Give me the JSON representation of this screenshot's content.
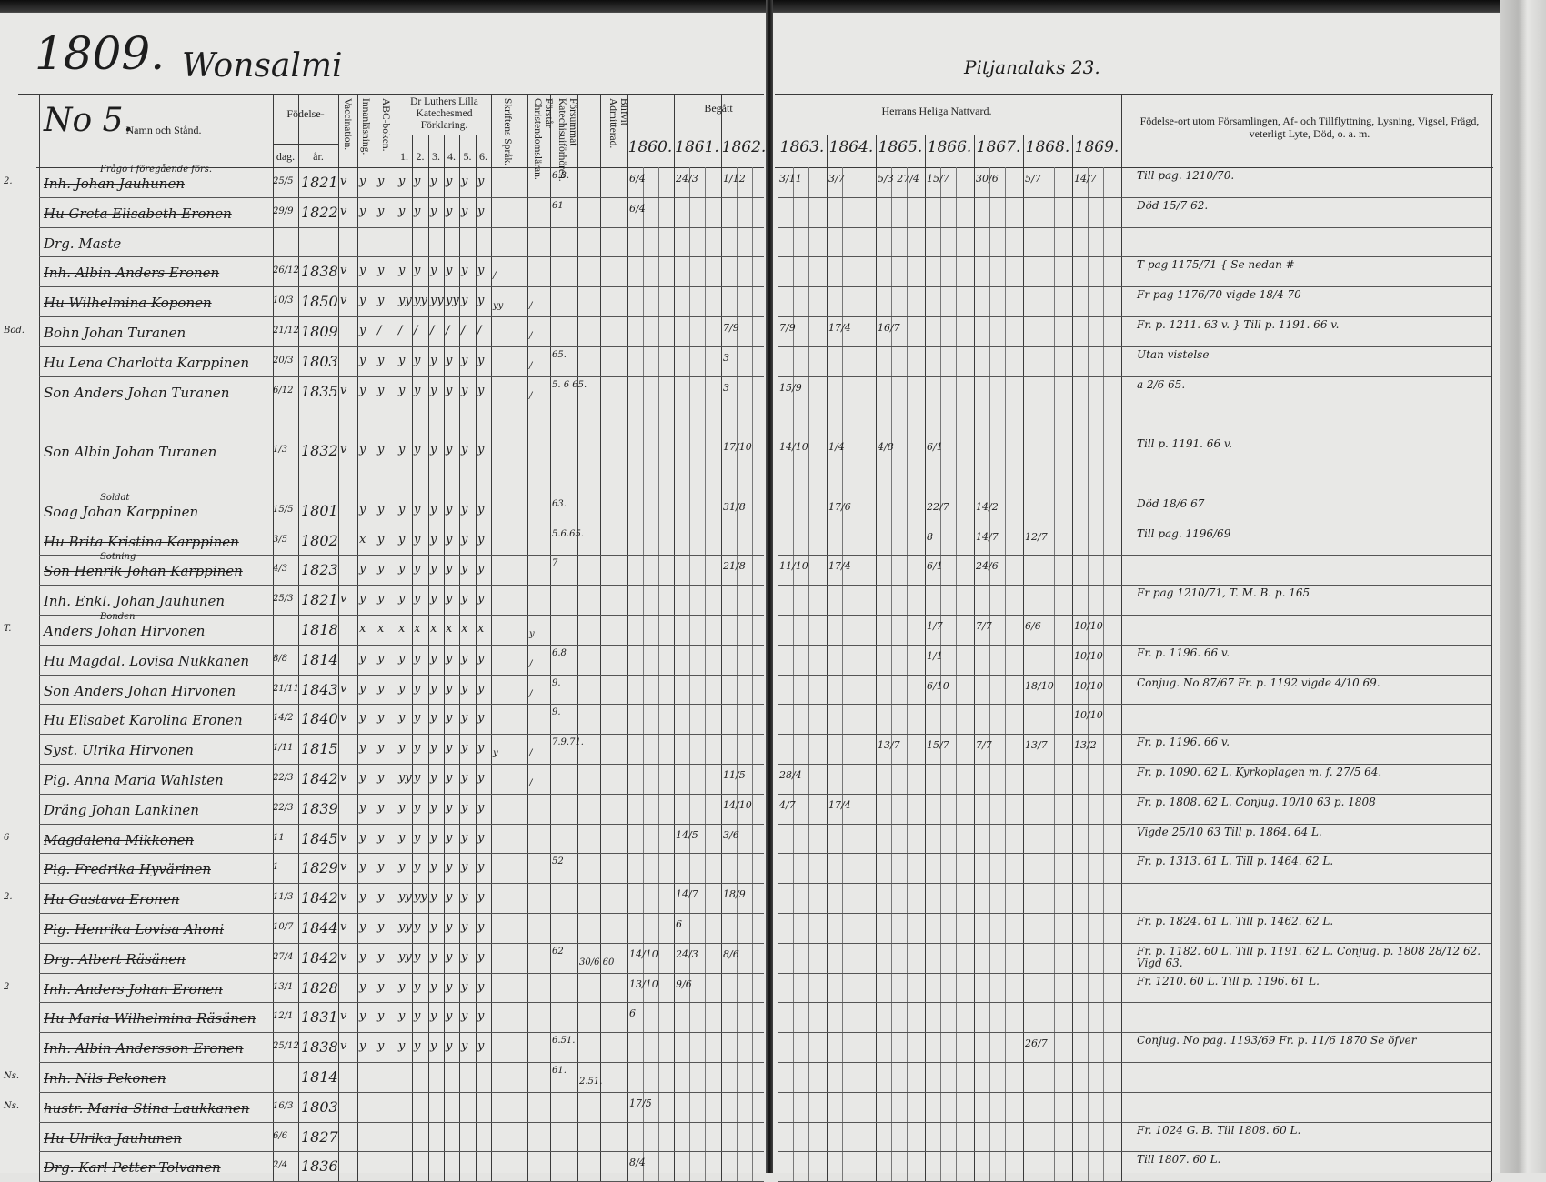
{
  "left_page": {
    "page_number": "1809.",
    "village": "Wonsalmi",
    "headers": {
      "number": "No 5.",
      "name": "Namn och Stånd.",
      "birth": "Födelse-",
      "day": "dag.",
      "year": "år.",
      "vaccination": "Vaccination.",
      "reading": "Innanläsning.",
      "abc": "ABC-boken.",
      "catechism": "Dr Luthers Lilla Katechesmed Förklaring.",
      "catechism_parts": [
        "1.",
        "2.",
        "3.",
        "4.",
        "5.",
        "6."
      ],
      "scripture": "Skriftens Språk.",
      "understands": "Förstår Christendomsläran.",
      "missed": "Försummat Katechisuiförhören.",
      "admitted": "Blifvit Admitterad.",
      "communion_left": "Begått",
      "years": [
        "1860.",
        "1861.",
        "1862."
      ]
    }
  },
  "right_page": {
    "place": "Pitjanalaks 23.",
    "headers": {
      "communion": "Herrans Heliga Nattvard.",
      "years": [
        "1863.",
        "1864.",
        "1865.",
        "1866.",
        "1867.",
        "1868.",
        "1869."
      ],
      "remarks": "Födelse-ort utom Församlingen, Af- och Tillflyttning, Lysning, Vigsel, Frägd, veterligt Lyte, Död, o. a. m."
    }
  },
  "rows": [
    {
      "margin": "2.",
      "note": "Frågo i föregående förs.",
      "name": "Inh. Johan Jauhunen",
      "struck": true,
      "day": "25/5",
      "year": "1821",
      "marks": [
        "v",
        "y",
        "y",
        "y",
        "y",
        "y",
        "y",
        "y",
        "y"
      ],
      "other": [
        "",
        "",
        "6.8.",
        ""
      ],
      "communion": {
        "1860": "6/4",
        "1861": "24/3",
        "1862": "1/12",
        "1863": "3/11",
        "1864": "3/7",
        "1865": "5/3 27/4",
        "1866": "15/7",
        "1867": "30/6",
        "1868": "5/7",
        "1869": "14/7"
      },
      "remark": "Till pag. 1210/70."
    },
    {
      "margin": "",
      "note": "",
      "name": "Hu Greta Elisabeth Eronen",
      "struck": true,
      "day": "29/9",
      "year": "1822",
      "marks": [
        "v",
        "y",
        "y",
        "y",
        "y",
        "y",
        "y",
        "y",
        "y"
      ],
      "other": [
        "",
        "",
        "61",
        ""
      ],
      "communion": {
        "1860": "6/4"
      },
      "remark": "Död 15/7 62."
    },
    {
      "margin": "",
      "note": "",
      "name": "Drg. Maste",
      "struck": false,
      "day": "",
      "year": "",
      "marks": [
        "",
        "",
        "",
        "",
        "",
        "",
        "",
        "",
        ""
      ],
      "other": [
        "",
        "",
        "",
        ""
      ],
      "communion": {},
      "remark": ""
    },
    {
      "margin": "",
      "note": "",
      "name": "Inh. Albin Anders Eronen",
      "struck": true,
      "day": "26/12",
      "year": "1838",
      "marks": [
        "v",
        "y",
        "y",
        "y",
        "y",
        "y",
        "y",
        "y",
        "y"
      ],
      "other": [
        "/",
        "",
        "",
        ""
      ],
      "communion": {},
      "remark": "T pag 1175/71 { Se nedan #"
    },
    {
      "margin": "",
      "note": "",
      "name": "Hu Wilhelmina Koponen",
      "struck": true,
      "day": "10/3",
      "year": "1850",
      "marks": [
        "v",
        "y",
        "y",
        "yy",
        "yy",
        "yy",
        "yy",
        "y",
        "y"
      ],
      "other": [
        "yy",
        "/",
        "",
        ""
      ],
      "communion": {},
      "remark": "Fr pag 1176/70   vigde 18/4 70"
    },
    {
      "margin": "Bod.",
      "note": "",
      "name": "Bohn Johan Turanen",
      "struck": false,
      "day": "21/12",
      "year": "1809",
      "marks": [
        "",
        "y",
        "/",
        "/",
        "/",
        "/",
        "/",
        "/",
        "/"
      ],
      "other": [
        "",
        "/",
        "",
        ""
      ],
      "communion": {
        "1862": "7/9",
        "1863": "7/9",
        "1864": "17/4",
        "1865": "16/7"
      },
      "remark": "Fr. p. 1211. 63 v.   } Till p. 1191. 66 v."
    },
    {
      "margin": "",
      "note": "",
      "name": "Hu Lena Charlotta Karppinen",
      "struck": false,
      "day": "20/3",
      "year": "1803",
      "marks": [
        "",
        "y",
        "y",
        "y",
        "y",
        "y",
        "y",
        "y",
        "y"
      ],
      "other": [
        "",
        "/",
        "65.",
        ""
      ],
      "communion": {
        "1862": "3"
      },
      "remark": "Utan vistelse"
    },
    {
      "margin": "",
      "note": "",
      "name": "Son Anders Johan Turanen",
      "struck": false,
      "day": "6/12",
      "year": "1835",
      "marks": [
        "v",
        "y",
        "y",
        "y",
        "y",
        "y",
        "y",
        "y",
        "y"
      ],
      "other": [
        "",
        "/",
        "5. 6 65.",
        ""
      ],
      "communion": {
        "1862": "3",
        "1863": "15/9"
      },
      "remark": "a 2/6 65."
    },
    {
      "margin": "",
      "note": "",
      "name": "",
      "struck": false,
      "day": "",
      "year": "",
      "marks": [
        "",
        "",
        "",
        "",
        "",
        "",
        "",
        "",
        ""
      ],
      "other": [
        "",
        "",
        "",
        ""
      ],
      "communion": {},
      "remark": ""
    },
    {
      "margin": "",
      "note": "",
      "name": "Son Albin Johan Turanen",
      "struck": false,
      "day": "1/3",
      "year": "1832",
      "marks": [
        "v",
        "y",
        "y",
        "y",
        "y",
        "y",
        "y",
        "y",
        "y"
      ],
      "other": [
        "",
        "",
        "",
        ""
      ],
      "communion": {
        "1862": "17/10",
        "1863": "14/10",
        "1864": "1/4",
        "1865": "4/8",
        "1866": "6/1"
      },
      "remark": "Till p. 1191. 66 v."
    },
    {
      "margin": "",
      "note": "",
      "name": "",
      "struck": false,
      "day": "",
      "year": "",
      "marks": [
        "",
        "",
        "",
        "",
        "",
        "",
        "",
        "",
        ""
      ],
      "other": [
        "",
        "",
        "",
        ""
      ],
      "communion": {},
      "remark": ""
    },
    {
      "margin": "",
      "note": "Soldat",
      "name": "Soag Johan Karppinen",
      "struck": false,
      "day": "15/5",
      "year": "1801",
      "marks": [
        "",
        "y",
        "y",
        "y",
        "y",
        "y",
        "y",
        "y",
        "y"
      ],
      "other": [
        "",
        "",
        "63.",
        ""
      ],
      "communion": {
        "1862": "31/8",
        "1864": "17/6",
        "1866": "22/7",
        "1867": "14/2"
      },
      "remark": "Död 18/6 67"
    },
    {
      "margin": "",
      "note": "",
      "name": "Hu Brita Kristina Karppinen",
      "struck": true,
      "day": "3/5",
      "year": "1802",
      "marks": [
        "",
        "x",
        "y",
        "y",
        "y",
        "y",
        "y",
        "y",
        "y"
      ],
      "other": [
        "",
        "",
        "5.6.65.",
        ""
      ],
      "communion": {
        "1866": "8",
        "1867": "14/7",
        "1868": "12/7"
      },
      "remark": "Till pag. 1196/69"
    },
    {
      "margin": "",
      "note": "Sotning",
      "name": "Son Henrik Johan Karppinen",
      "struck": true,
      "day": "4/3",
      "year": "1823",
      "marks": [
        "",
        "y",
        "y",
        "y",
        "y",
        "y",
        "y",
        "y",
        "y"
      ],
      "other": [
        "",
        "",
        "7",
        ""
      ],
      "communion": {
        "1862": "21/8",
        "1863": "11/10",
        "1864": "17/4",
        "1866": "6/1",
        "1867": "24/6"
      },
      "remark": ""
    },
    {
      "margin": "",
      "note": "",
      "name": "Inh. Enkl. Johan Jauhunen",
      "struck": false,
      "day": "25/3",
      "year": "1821",
      "marks": [
        "v",
        "y",
        "y",
        "y",
        "y",
        "y",
        "y",
        "y",
        "y"
      ],
      "other": [
        "",
        "",
        "",
        ""
      ],
      "communion": {},
      "remark": "Fr pag 1210/71, T. M. B. p. 165"
    },
    {
      "margin": "T.",
      "note": "Bonden",
      "name": "Anders Johan Hirvonen",
      "struck": false,
      "day": "",
      "year": "1818",
      "marks": [
        "",
        "x",
        "x",
        "x",
        "x",
        "x",
        "x",
        "x",
        "x"
      ],
      "other": [
        "",
        "y",
        "",
        ""
      ],
      "communion": {
        "1866": "1/7",
        "1867": "7/7",
        "1868": "6/6",
        "1869": "10/10"
      },
      "remark": ""
    },
    {
      "margin": "",
      "note": "",
      "name": "Hu Magdal. Lovisa Nukkanen",
      "struck": false,
      "day": "8/8",
      "year": "1814",
      "marks": [
        "",
        "y",
        "y",
        "y",
        "y",
        "y",
        "y",
        "y",
        "y"
      ],
      "other": [
        "",
        "/",
        "6.8",
        ""
      ],
      "communion": {
        "1866": "1/1",
        "1869": "10/10"
      },
      "remark": "Fr. p. 1196. 66 v."
    },
    {
      "margin": "",
      "note": "",
      "name": "Son Anders Johan Hirvonen",
      "struck": false,
      "day": "21/11",
      "year": "1843",
      "marks": [
        "v",
        "y",
        "y",
        "y",
        "y",
        "y",
        "y",
        "y",
        "y"
      ],
      "other": [
        "",
        "/",
        "9.",
        ""
      ],
      "communion": {
        "1866": "6/10",
        "1868": "18/10",
        "1869": "10/10"
      },
      "remark": "Conjug. No 87/67 Fr. p. 1192  vigde 4/10 69."
    },
    {
      "margin": "",
      "note": "",
      "name": "Hu Elisabet Karolina Eronen",
      "struck": false,
      "day": "14/2",
      "year": "1840",
      "marks": [
        "v",
        "y",
        "y",
        "y",
        "y",
        "y",
        "y",
        "y",
        "y"
      ],
      "other": [
        "",
        "",
        "9.",
        ""
      ],
      "communion": {
        "1869": "10/10"
      },
      "remark": ""
    },
    {
      "margin": "",
      "note": "",
      "name": "Syst. Ulrika Hirvonen",
      "struck": false,
      "day": "1/11",
      "year": "1815",
      "marks": [
        "",
        "y",
        "y",
        "y",
        "y",
        "y",
        "y",
        "y",
        "y"
      ],
      "other": [
        "y",
        "/",
        "7.9.71.",
        ""
      ],
      "communion": {
        "1865": "13/7",
        "1866": "15/7",
        "1867": "7/7",
        "1868": "13/7",
        "1869": "13/2"
      },
      "remark": "Fr. p. 1196. 66 v."
    },
    {
      "margin": "",
      "note": "",
      "name": "Pig. Anna Maria Wahlsten",
      "struck": false,
      "day": "22/3",
      "year": "1842",
      "marks": [
        "v",
        "y",
        "y",
        "yy",
        "y",
        "y",
        "y",
        "y",
        "y"
      ],
      "other": [
        "",
        "/",
        "",
        ""
      ],
      "communion": {
        "1862": "11/5",
        "1863": "28/4"
      },
      "remark": "Fr. p. 1090. 62 L.  Kyrkoplagen m. f. 27/5 64."
    },
    {
      "margin": "",
      "note": "",
      "name": "Dräng Johan Lankinen",
      "struck": false,
      "day": "22/3",
      "year": "1839",
      "marks": [
        "",
        "y",
        "y",
        "y",
        "y",
        "y",
        "y",
        "y",
        "y"
      ],
      "other": [
        "",
        "",
        "",
        ""
      ],
      "communion": {
        "1862": "14/10",
        "1863": "4/7",
        "1864": "17/4"
      },
      "remark": "Fr. p. 1808. 62 L. Conjug. 10/10 63 p. 1808"
    },
    {
      "margin": "6",
      "note": "",
      "name": "Magdalena Mikkonen",
      "struck": true,
      "day": "11",
      "year": "1845",
      "marks": [
        "v",
        "y",
        "y",
        "y",
        "y",
        "y",
        "y",
        "y",
        "y"
      ],
      "other": [
        "",
        "",
        "",
        ""
      ],
      "communion": {
        "1861": "14/5",
        "1862": "3/6"
      },
      "remark": "Vigde 25/10 63  Till p. 1864. 64 L."
    },
    {
      "margin": "",
      "note": "",
      "name": "Pig. Fredrika Hyvärinen",
      "struck": true,
      "day": "1",
      "year": "1829",
      "marks": [
        "v",
        "y",
        "y",
        "y",
        "y",
        "y",
        "y",
        "y",
        "y"
      ],
      "other": [
        "",
        "",
        "52",
        ""
      ],
      "communion": {},
      "remark": "Fr. p. 1313. 61 L. Till p. 1464. 62 L."
    },
    {
      "margin": "2.",
      "note": "",
      "name": "Hu Gustava Eronen",
      "struck": true,
      "day": "11/3",
      "year": "1842",
      "marks": [
        "v",
        "y",
        "y",
        "yy",
        "yy",
        "y",
        "y",
        "y",
        "y"
      ],
      "other": [
        "",
        "",
        "",
        ""
      ],
      "communion": {
        "1861": "14/7",
        "1862": "18/9"
      },
      "remark": ""
    },
    {
      "margin": "",
      "note": "",
      "name": "Pig. Henrika Lovisa Ahoni",
      "struck": true,
      "day": "10/7",
      "year": "1844",
      "marks": [
        "v",
        "y",
        "y",
        "yy",
        "y",
        "y",
        "y",
        "y",
        "y"
      ],
      "other": [
        "",
        "",
        "",
        ""
      ],
      "communion": {
        "1861": "6"
      },
      "remark": "Fr. p. 1824. 61 L. Till p. 1462. 62 L."
    },
    {
      "margin": "",
      "note": "",
      "name": "Drg. Albert Räsänen",
      "struck": true,
      "day": "27/4",
      "year": "1842",
      "marks": [
        "v",
        "y",
        "y",
        "yy",
        "y",
        "y",
        "y",
        "y",
        "y"
      ],
      "other": [
        "",
        "",
        "62",
        "30/6 60"
      ],
      "communion": {
        "1860": "14/10",
        "1861": "24/3",
        "1862": "8/6"
      },
      "remark": "Fr. p. 1182. 60 L. Till p. 1191. 62 L.  Conjug. p. 1808 28/12 62. Vigd 63."
    },
    {
      "margin": "2",
      "note": "",
      "name": "Inh. Anders Johan Eronen",
      "struck": true,
      "day": "13/1",
      "year": "1828",
      "marks": [
        "",
        "y",
        "y",
        "y",
        "y",
        "y",
        "y",
        "y",
        "y"
      ],
      "other": [
        "",
        "",
        "",
        ""
      ],
      "communion": {
        "1860": "13/10",
        "1861": "9/6"
      },
      "remark": "Fr. 1210. 60 L. Till p. 1196. 61 L."
    },
    {
      "margin": "",
      "note": "",
      "name": "Hu Maria Wilhelmina Räsänen",
      "struck": true,
      "day": "12/1",
      "year": "1831",
      "marks": [
        "v",
        "y",
        "y",
        "y",
        "y",
        "y",
        "y",
        "y",
        "y"
      ],
      "other": [
        "",
        "",
        "",
        ""
      ],
      "communion": {
        "1860": "6"
      },
      "remark": ""
    },
    {
      "margin": "",
      "note": "",
      "name": "Inh. Albin Andersson Eronen",
      "struck": true,
      "day": "25/12",
      "year": "1838",
      "marks": [
        "v",
        "y",
        "y",
        "y",
        "y",
        "y",
        "y",
        "y",
        "y"
      ],
      "other": [
        "",
        "",
        "6.51.",
        ""
      ],
      "communion": {
        "1868": "26/7"
      },
      "remark": "Conjug. No pag. 1193/69 Fr. p. 11/6 1870  Se öfver"
    },
    {
      "margin": "Ns.",
      "note": "",
      "name": "Inh. Nils Pekonen",
      "struck": true,
      "day": "",
      "year": "1814",
      "marks": [
        "",
        "",
        "",
        "",
        "",
        "",
        "",
        "",
        ""
      ],
      "other": [
        "",
        "",
        "61.",
        "2.51."
      ],
      "communion": {},
      "remark": ""
    },
    {
      "margin": "Ns.",
      "note": "",
      "name": "hustr. Maria Stina Laukkanen",
      "struck": true,
      "day": "16/3",
      "year": "1803",
      "marks": [
        "",
        "",
        "",
        "",
        "",
        "",
        "",
        "",
        ""
      ],
      "other": [
        "",
        "",
        "",
        ""
      ],
      "communion": {
        "1860": "17/5"
      },
      "remark": ""
    },
    {
      "margin": "",
      "note": "",
      "name": "Hu Ulrika Jauhunen",
      "struck": true,
      "day": "6/6",
      "year": "1827",
      "marks": [
        "",
        "",
        "",
        "",
        "",
        "",
        "",
        "",
        ""
      ],
      "other": [
        "",
        "",
        "",
        ""
      ],
      "communion": {},
      "remark": "Fr. 1024 G. B. Till 1808. 60 L."
    },
    {
      "margin": "",
      "note": "",
      "name": "Drg. Karl Petter Tolvanen",
      "struck": true,
      "day": "2/4",
      "year": "1836",
      "marks": [
        "",
        "",
        "",
        "",
        "",
        "",
        "",
        "",
        ""
      ],
      "other": [
        "",
        "",
        "",
        ""
      ],
      "communion": {
        "1860": "8/4"
      },
      "remark": "Till 1807. 60 L."
    }
  ]
}
